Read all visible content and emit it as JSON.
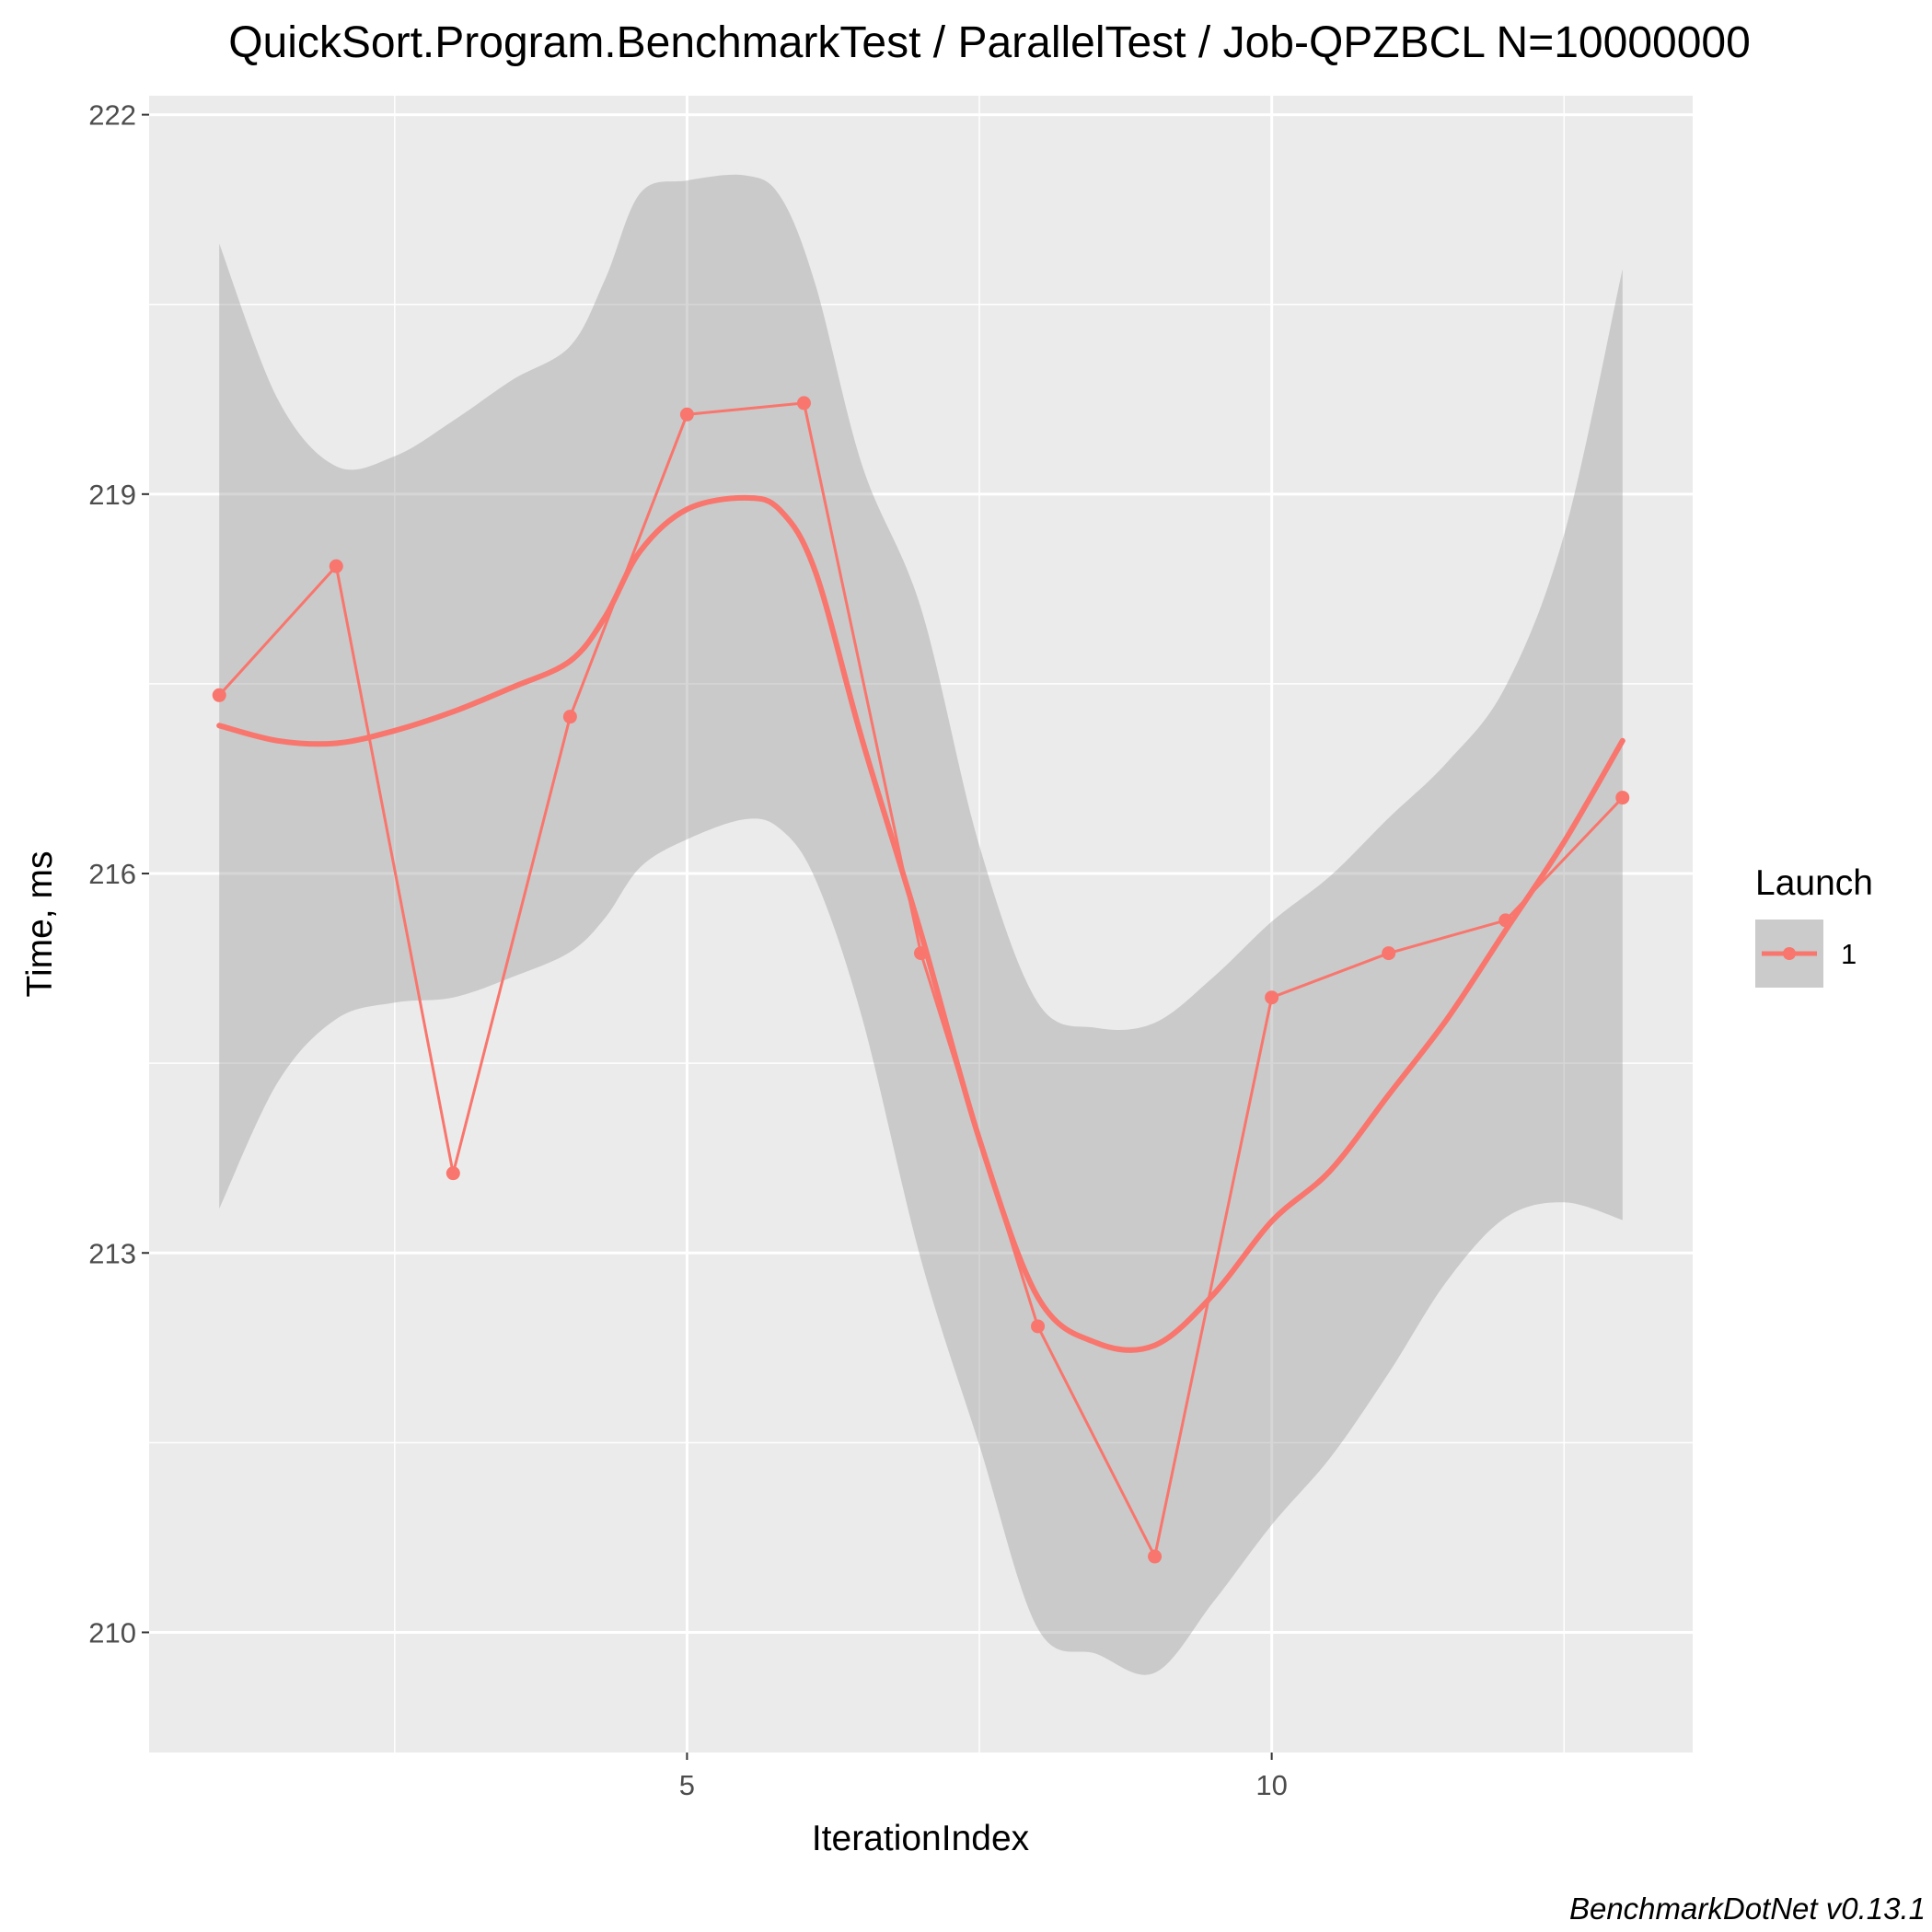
{
  "chart_data": {
    "type": "line",
    "title": "QuickSort.Program.BenchmarkTest / ParallelTest / Job-QPZBCL N=10000000",
    "xlabel": "IterationIndex",
    "ylabel": "Time, ms",
    "xlim": [
      0.4,
      13.6
    ],
    "ylim": [
      209.05,
      222.15
    ],
    "x_ticks": [
      5,
      10
    ],
    "x_tick_labels": [
      "5",
      "10"
    ],
    "x_minor_ticks": [
      2.5,
      7.5,
      12.5
    ],
    "y_ticks": [
      210,
      213,
      216,
      219,
      222
    ],
    "y_tick_labels": [
      "210",
      "213",
      "216",
      "219",
      "222"
    ],
    "y_minor_ticks": [
      211.5,
      214.5,
      217.5,
      220.5
    ],
    "grid": true,
    "legend": {
      "title": "Launch",
      "position": "right",
      "entries": [
        "1"
      ]
    },
    "series": [
      {
        "name": "1",
        "color": "#F8766D",
        "x": [
          1,
          2,
          3,
          4,
          5,
          6,
          7,
          8,
          9,
          10,
          11,
          12,
          13
        ],
        "values": [
          217.41,
          218.43,
          213.63,
          217.24,
          219.63,
          219.72,
          215.37,
          212.42,
          210.6,
          215.02,
          215.37,
          215.63,
          216.6
        ]
      }
    ],
    "smooth": {
      "x": [
        1,
        1.5,
        2,
        2.5,
        3,
        3.5,
        4,
        4.3,
        4.6,
        5,
        5.5,
        5.8,
        6.1,
        6.5,
        7,
        7.5,
        8,
        8.5,
        9,
        9.5,
        10,
        10.5,
        11,
        11.5,
        12,
        12.5,
        13
      ],
      "values": [
        217.17,
        217.05,
        217.03,
        217.13,
        217.28,
        217.47,
        217.68,
        218.03,
        218.55,
        218.88,
        218.97,
        218.87,
        218.38,
        217.05,
        215.53,
        213.9,
        212.65,
        212.29,
        212.27,
        212.67,
        213.25,
        213.65,
        214.25,
        214.85,
        215.55,
        216.25,
        217.05
      ],
      "se_lower": [
        213.35,
        214.35,
        214.85,
        214.98,
        215.02,
        215.18,
        215.38,
        215.65,
        216.05,
        216.27,
        216.43,
        216.35,
        215.95,
        214.85,
        212.95,
        211.48,
        210.03,
        209.83,
        209.68,
        210.24,
        210.85,
        211.38,
        212.05,
        212.78,
        213.28,
        213.4,
        213.26
      ],
      "se_upper": [
        220.98,
        219.75,
        219.22,
        219.3,
        219.58,
        219.9,
        220.17,
        220.7,
        221.38,
        221.48,
        221.52,
        221.35,
        220.65,
        219.22,
        218.1,
        216.22,
        214.98,
        214.78,
        214.82,
        215.18,
        215.62,
        215.98,
        216.44,
        216.88,
        217.48,
        218.68,
        220.78
      ],
      "line_color": "#F8766D",
      "band_color": "#999999"
    },
    "caption": "BenchmarkDotNet v0.13.1"
  }
}
